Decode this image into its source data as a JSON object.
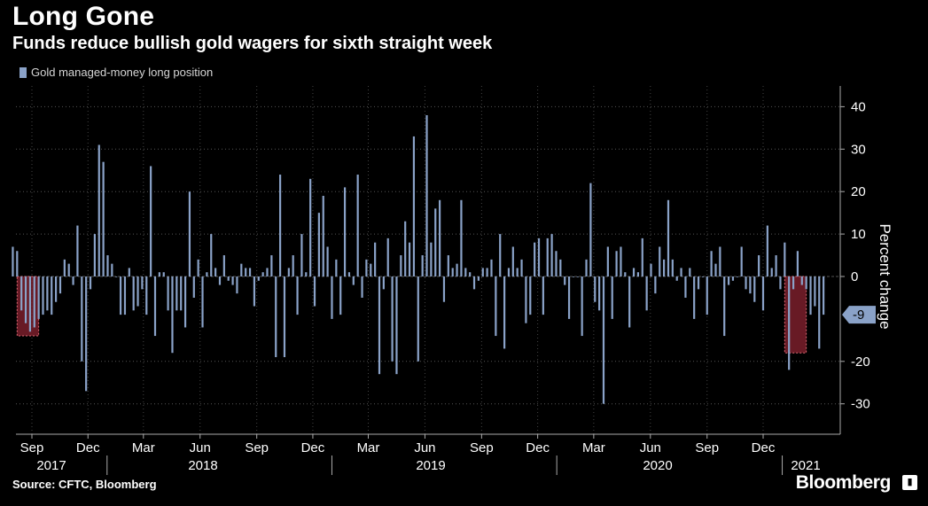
{
  "header": {
    "title": "Long Gone",
    "subtitle": "Funds reduce bullish gold wagers for sixth straight week"
  },
  "legend": {
    "label": "Gold managed-money long position"
  },
  "footer": {
    "source": "Source: CFTC, Bloomberg",
    "brand": "Bloomberg"
  },
  "chart_data": {
    "type": "bar",
    "title": "Long Gone",
    "subtitle": "Funds reduce bullish gold wagers for sixth straight week",
    "ylabel": "Percent change",
    "ylim": [
      -38,
      45
    ],
    "yticks": [
      40,
      30,
      20,
      10,
      0,
      -20,
      -30
    ],
    "y_axis_side": "right",
    "grid": "dotted horizontal and vertical",
    "series": [
      {
        "name": "Gold managed-money long position",
        "color": "#8aa2c8",
        "start": "2017-08-01",
        "frequency": "weekly",
        "values": [
          7,
          6,
          -8,
          -11,
          -13,
          -12,
          -10,
          -9,
          -8,
          -9,
          -6,
          -4,
          4,
          3,
          -2,
          12,
          -20,
          -27,
          -3,
          10,
          31,
          27,
          5,
          3,
          0,
          -9,
          -9,
          2,
          -8,
          -7,
          -3,
          -9,
          26,
          -14,
          1,
          1,
          -8,
          -18,
          -8,
          -8,
          -12,
          20,
          -5,
          4,
          -12,
          1,
          10,
          2,
          -2,
          5,
          -1,
          -2,
          -4,
          3,
          2,
          2,
          -7,
          -1,
          1,
          2,
          5,
          -19,
          24,
          -19,
          2,
          5,
          -9,
          10,
          1,
          23,
          -7,
          15,
          19,
          7,
          -10,
          4,
          -9,
          21,
          1,
          -2,
          24,
          -5,
          4,
          3,
          8,
          -23,
          -3,
          9,
          -20,
          -23,
          5,
          13,
          8,
          33,
          -20,
          5,
          38,
          8,
          16,
          18,
          -6,
          5,
          2,
          3,
          18,
          2,
          1,
          -3,
          -1,
          2,
          2,
          4,
          -14,
          10,
          -17,
          2,
          7,
          2,
          4,
          -11,
          -9,
          8,
          9,
          -9,
          9,
          10,
          6,
          4,
          -2,
          -10,
          0,
          0,
          -14,
          4,
          22,
          -6,
          -8,
          -30,
          7,
          -10,
          6,
          7,
          1,
          -12,
          2,
          1,
          9,
          -8,
          3,
          -4,
          7,
          4,
          18,
          4,
          -1,
          2,
          -5,
          2,
          -10,
          -3,
          0,
          -9,
          6,
          3,
          7,
          -14,
          -2,
          -1,
          0,
          7,
          -3,
          -4,
          -6,
          5,
          -8,
          12,
          2,
          5,
          -3,
          8,
          -22,
          -3,
          6,
          -2,
          -3,
          -9,
          -7,
          -17,
          -9
        ]
      }
    ],
    "latest_value_label": "-9",
    "highlight_regions": [
      {
        "from": "2017-08-08",
        "to": "2017-09-12"
      },
      {
        "from": "2021-01-05",
        "to": "2021-02-09"
      }
    ],
    "x_month_labels": [
      "Sep",
      "Dec",
      "Mar",
      "Jun",
      "Sep",
      "Dec",
      "Mar",
      "Jun",
      "Sep",
      "Dec",
      "Mar",
      "Jun",
      "Sep",
      "Dec"
    ],
    "x_year_labels": [
      "2017",
      "2018",
      "2019",
      "2020",
      "2021"
    ],
    "colors": {
      "bar": "#8aa2c8",
      "highlight": "#7a1f2b",
      "highlight_border": "#e06a76",
      "callout": "#8aa2c8"
    }
  }
}
